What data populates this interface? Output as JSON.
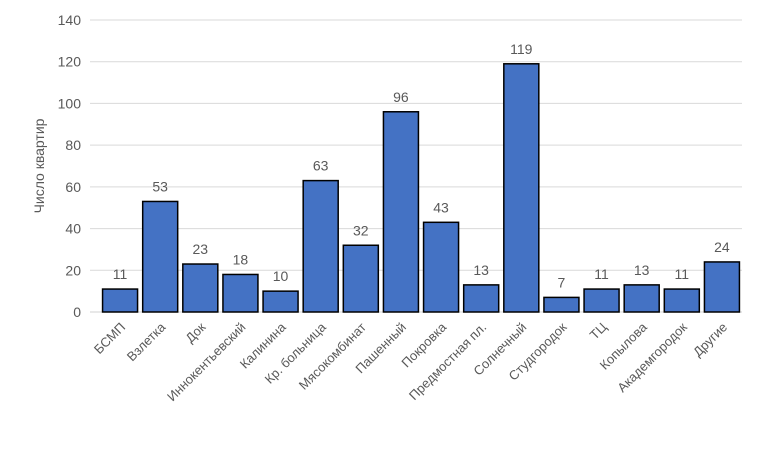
{
  "chart_data": {
    "type": "bar",
    "title": "",
    "xlabel": "",
    "ylabel": "Число квартир",
    "ylim": [
      0,
      140
    ],
    "yticks": [
      0,
      20,
      40,
      60,
      80,
      100,
      120,
      140
    ],
    "grid": true,
    "legend": "none",
    "bar_color": "#4472C4",
    "bar_edge_color": "#000000",
    "categories": [
      "БСМП",
      "Взлетка",
      "Док",
      "Иннокентьевский",
      "Калинина",
      "Кр. больница",
      "Мясокомбинат",
      "Пашенный",
      "Покровка",
      "Предмостная пл.",
      "Солнечный",
      "Студгородок",
      "ТЦ",
      "Копылова",
      "Академгородок",
      "Другие"
    ],
    "values": [
      11,
      53,
      23,
      18,
      10,
      63,
      32,
      96,
      43,
      13,
      119,
      7,
      11,
      13,
      11,
      24
    ],
    "data_labels": true
  }
}
